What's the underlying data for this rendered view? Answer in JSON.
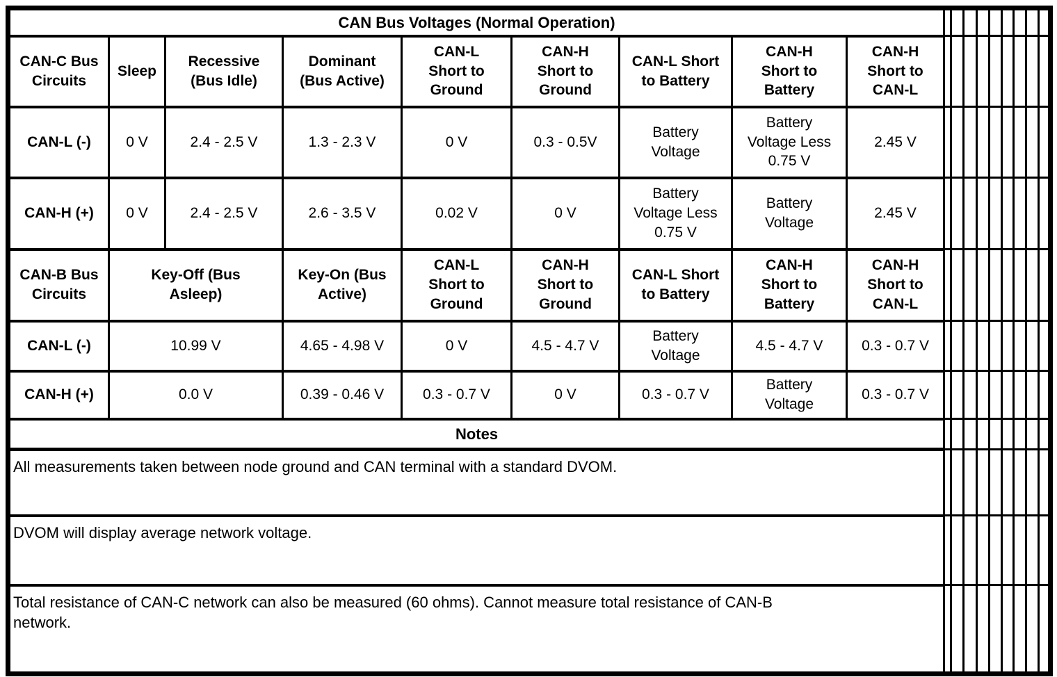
{
  "colors": {
    "ink": "#000000",
    "paper": "#ffffff"
  },
  "table": {
    "title": "CAN Bus Voltages (Normal Operation)",
    "canc": {
      "header": [
        "CAN-C Bus\nCircuits",
        "Sleep",
        "Recessive\n(Bus Idle)",
        "Dominant\n(Bus Active)",
        "CAN-L\nShort to\nGround",
        "CAN-H\nShort to\nGround",
        "CAN-L Short\nto Battery",
        "CAN-H\nShort to\nBattery",
        "CAN-H\nShort to\nCAN-L"
      ],
      "rows": [
        {
          "label": "CAN-L (-)",
          "values": [
            "0 V",
            "2.4 - 2.5 V",
            "1.3 - 2.3 V",
            "0 V",
            "0.3 - 0.5V",
            "Battery\nVoltage",
            "Battery\nVoltage Less\n0.75 V",
            "2.45 V"
          ]
        },
        {
          "label": "CAN-H (+)",
          "values": [
            "0 V",
            "2.4 - 2.5 V",
            "2.6 - 3.5 V",
            "0.02 V",
            "0 V",
            "Battery\nVoltage Less\n0.75 V",
            "Battery\nVoltage",
            "2.45 V"
          ]
        }
      ]
    },
    "canb": {
      "header": [
        "CAN-B Bus\nCircuits",
        "Key-Off (Bus\nAsleep)",
        "Key-On (Bus\nActive)",
        "CAN-L\nShort to\nGround",
        "CAN-H\nShort to\nGround",
        "CAN-L Short\nto Battery",
        "CAN-H\nShort to\nBattery",
        "CAN-H\nShort to\nCAN-L"
      ],
      "rows": [
        {
          "label": "CAN-L (-)",
          "values": [
            "10.99 V",
            "4.65 - 4.98 V",
            "0 V",
            "4.5 - 4.7 V",
            "Battery\nVoltage",
            "4.5 - 4.7 V",
            "0.3 - 0.7 V"
          ]
        },
        {
          "label": "CAN-H (+)",
          "values": [
            "0.0 V",
            "0.39 - 0.46 V",
            "0.3 - 0.7 V",
            "0 V",
            "0.3 - 0.7 V",
            "Battery\nVoltage",
            "0.3 - 0.7 V"
          ]
        }
      ]
    },
    "notes_header": "Notes",
    "notes": [
      "All measurements taken between node ground and CAN terminal with a standard DVOM.",
      "DVOM will display average network voltage.",
      "Total resistance of CAN-C network can also be measured (60 ohms). Cannot measure total resistance of CAN-B\nnetwork."
    ]
  }
}
